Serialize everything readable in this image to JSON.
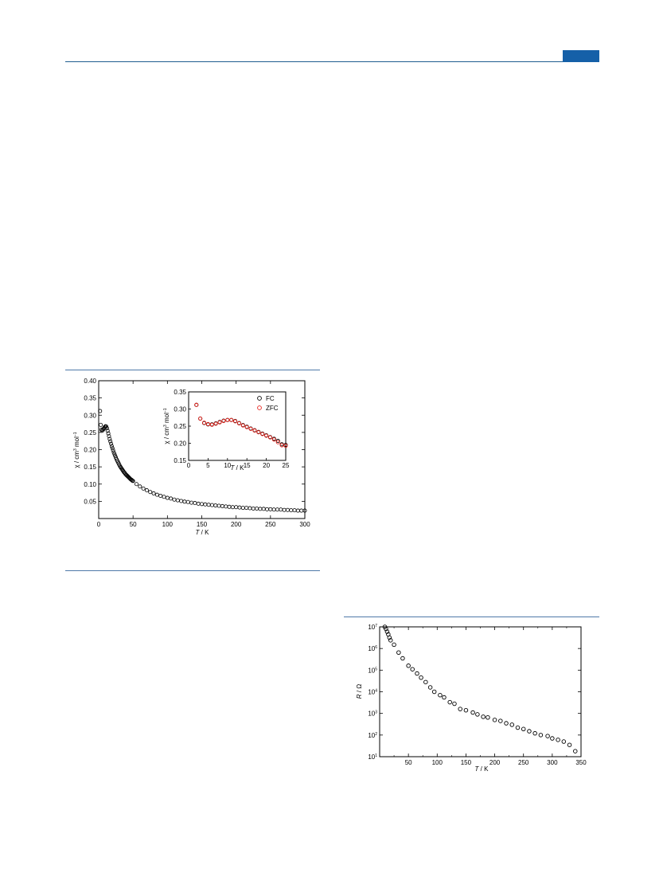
{
  "page": {
    "accent_color": "#1560a8",
    "rule_color": "#4f79a8"
  },
  "chart_data": [
    {
      "type": "scatter",
      "xlabel_italic": "T",
      "xlabel_unit": " / K",
      "ylabel_prefix": "χ / cm",
      "ylabel_exp1": "3",
      "ylabel_mid": " mol",
      "ylabel_exp2": "−1",
      "xlim": [
        0,
        300
      ],
      "ylim": [
        0.0,
        0.4
      ],
      "xticks": [
        "0",
        "50",
        "100",
        "150",
        "200",
        "250",
        "300"
      ],
      "yticks": [
        "0.05",
        "0.10",
        "0.15",
        "0.20",
        "0.25",
        "0.30",
        "0.35",
        "0.40"
      ],
      "marker_color": "#000000",
      "series": [
        {
          "x": [
            2,
            3,
            4,
            5,
            6,
            7,
            8,
            9,
            10,
            11,
            12,
            13,
            14,
            15,
            16,
            17,
            18,
            19,
            20,
            21,
            22,
            23,
            24,
            25,
            26,
            27,
            28,
            29,
            30,
            31,
            32,
            33,
            34,
            35,
            36,
            37,
            38,
            39,
            40,
            41,
            42,
            43,
            44,
            45,
            46,
            47,
            48,
            49,
            50,
            55,
            60,
            65,
            70,
            75,
            80,
            85,
            90,
            95,
            100,
            105,
            110,
            115,
            120,
            125,
            130,
            135,
            140,
            145,
            150,
            155,
            160,
            165,
            170,
            175,
            180,
            185,
            190,
            195,
            200,
            205,
            210,
            215,
            220,
            225,
            230,
            235,
            240,
            245,
            250,
            255,
            260,
            265,
            270,
            275,
            280,
            285,
            290,
            295,
            300
          ],
          "y": [
            0.312,
            0.272,
            0.258,
            0.255,
            0.257,
            0.26,
            0.263,
            0.266,
            0.268,
            0.267,
            0.262,
            0.255,
            0.247,
            0.239,
            0.231,
            0.224,
            0.217,
            0.21,
            0.204,
            0.198,
            0.192,
            0.187,
            0.182,
            0.177,
            0.172,
            0.168,
            0.164,
            0.16,
            0.156,
            0.152,
            0.149,
            0.146,
            0.143,
            0.14,
            0.137,
            0.134,
            0.132,
            0.129,
            0.127,
            0.125,
            0.123,
            0.121,
            0.119,
            0.117,
            0.115,
            0.113,
            0.112,
            0.11,
            0.109,
            0.1,
            0.093,
            0.087,
            0.082,
            0.077,
            0.073,
            0.069,
            0.066,
            0.063,
            0.06,
            0.058,
            0.055,
            0.053,
            0.051,
            0.049,
            0.048,
            0.046,
            0.045,
            0.043,
            0.042,
            0.041,
            0.04,
            0.039,
            0.038,
            0.037,
            0.036,
            0.035,
            0.034,
            0.033,
            0.033,
            0.032,
            0.031,
            0.031,
            0.03,
            0.029,
            0.029,
            0.028,
            0.028,
            0.027,
            0.027,
            0.026,
            0.026,
            0.026,
            0.025,
            0.025,
            0.024,
            0.024,
            0.023,
            0.023,
            0.023
          ]
        }
      ],
      "inset": {
        "type": "scatter",
        "xlabel_italic": "T",
        "xlabel_unit": " / K",
        "ylabel_prefix": "χ / cm",
        "ylabel_exp1": "3",
        "ylabel_mid": " mol",
        "ylabel_exp2": "−1",
        "xlim": [
          0,
          25
        ],
        "ylim": [
          0.15,
          0.35
        ],
        "xticks": [
          "0",
          "5",
          "10",
          "15",
          "20",
          "25"
        ],
        "yticks": [
          "0.15",
          "0.20",
          "0.25",
          "0.30",
          "0.35"
        ],
        "legend_position": "top-right",
        "series": [
          {
            "name": "FC",
            "color": "#000000",
            "x": [
              2,
              3,
              4,
              5,
              6,
              7,
              8,
              9,
              10,
              11,
              12,
              13,
              14,
              15,
              16,
              17,
              18,
              19,
              20,
              21,
              22,
              23,
              24,
              25
            ],
            "y": [
              0.312,
              0.272,
              0.259,
              0.255,
              0.255,
              0.258,
              0.262,
              0.266,
              0.268,
              0.268,
              0.265,
              0.259,
              0.253,
              0.248,
              0.243,
              0.238,
              0.233,
              0.228,
              0.223,
              0.218,
              0.213,
              0.207,
              0.197,
              0.195
            ]
          },
          {
            "name": "ZFC",
            "color": "#e8221b",
            "x": [
              2,
              3,
              4,
              5,
              6,
              7,
              8,
              9,
              10,
              11,
              12,
              13,
              14,
              15,
              16,
              17,
              18,
              19,
              20,
              21,
              22,
              23,
              24,
              25
            ],
            "y": [
              0.312,
              0.272,
              0.26,
              0.256,
              0.254,
              0.257,
              0.261,
              0.265,
              0.268,
              0.268,
              0.264,
              0.258,
              0.252,
              0.247,
              0.242,
              0.237,
              0.232,
              0.227,
              0.222,
              0.217,
              0.211,
              0.203,
              0.194,
              0.193
            ]
          }
        ]
      }
    },
    {
      "type": "scatter",
      "xlabel_italic": "T",
      "xlabel_unit": " / K",
      "ylabel_italic": "R",
      "ylabel_unit": " / Ω",
      "xlim": [
        0,
        350
      ],
      "ylim": [
        10,
        10000000
      ],
      "yscale": "log",
      "xticks": [
        "50",
        "100",
        "150",
        "200",
        "250",
        "300",
        "350"
      ],
      "yticks": [
        {
          "base": "10",
          "exp": "1"
        },
        {
          "base": "10",
          "exp": "2"
        },
        {
          "base": "10",
          "exp": "3"
        },
        {
          "base": "10",
          "exp": "4"
        },
        {
          "base": "10",
          "exp": "5"
        },
        {
          "base": "10",
          "exp": "6"
        },
        {
          "base": "10",
          "exp": "7"
        }
      ],
      "marker_color": "#000000",
      "series": [
        {
          "x": [
            9,
            11,
            13,
            15,
            17,
            19,
            25,
            33,
            40,
            50,
            57,
            65,
            72,
            80,
            88,
            95,
            105,
            112,
            122,
            130,
            140,
            150,
            162,
            170,
            180,
            188,
            200,
            210,
            220,
            230,
            240,
            250,
            260,
            270,
            280,
            292,
            300,
            310,
            320,
            330,
            340
          ],
          "y": [
            10000000,
            8000000,
            6000000,
            4500000,
            3200000,
            2400000,
            1500000,
            650000,
            350000,
            160000,
            110000,
            70000,
            45000,
            28000,
            16000,
            10000,
            7000,
            5500,
            3300,
            2800,
            1600,
            1400,
            1100,
            900,
            700,
            650,
            500,
            450,
            350,
            300,
            220,
            190,
            150,
            120,
            100,
            90,
            70,
            60,
            50,
            35,
            18
          ]
        }
      ]
    }
  ]
}
